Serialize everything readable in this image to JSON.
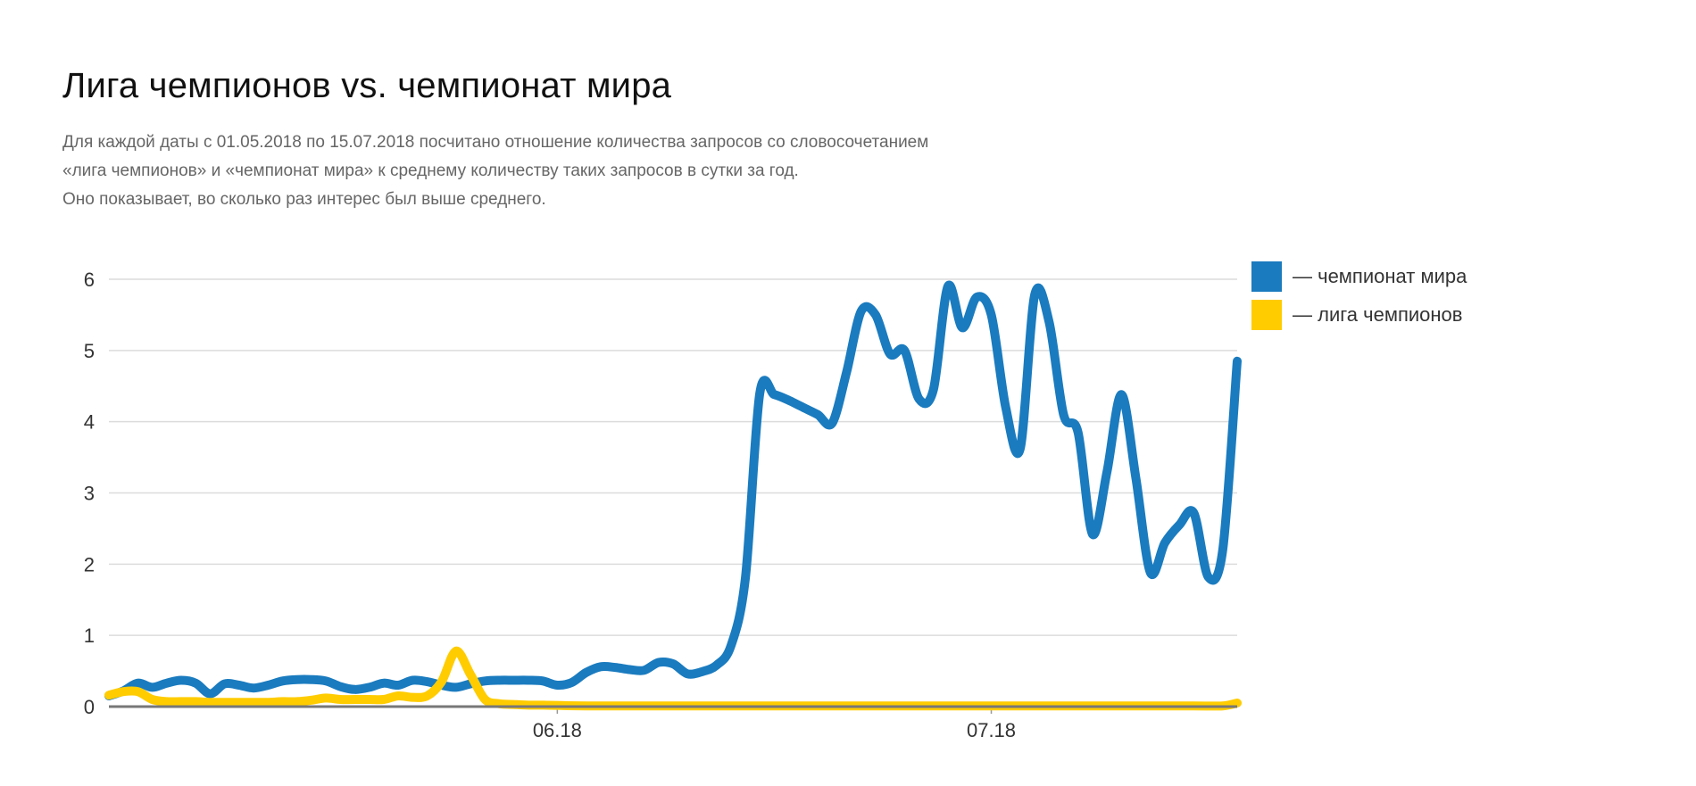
{
  "title": "Лига чемпионов vs. чемпионат мира",
  "subtitle": [
    "Для каждой даты с 01.05.2018 по 15.07.2018 посчитано отношение количества запросов со словосочетанием",
    "«лига чемпионов» и «чемпионат мира» к среднему количеству таких запросов в сутки за год.",
    "Оно показывает, во сколько раз интерес был выше среднего."
  ],
  "legend": [
    {
      "label": "— чемпионат мира",
      "color": "#1a7bbf"
    },
    {
      "label": "— лига чемпионов",
      "color": "#ffcc00"
    }
  ],
  "chart_data": {
    "type": "line",
    "title": "Лига чемпионов vs. чемпионат мира",
    "xlabel": "",
    "ylabel": "",
    "xlim": [
      "2018-05-01",
      "2018-07-15"
    ],
    "ylim": [
      0,
      6
    ],
    "yticks": [
      0,
      1,
      2,
      3,
      4,
      5,
      6
    ],
    "xticks": [
      {
        "date": "2018-06-01",
        "label": "06.18"
      },
      {
        "date": "2018-07-01",
        "label": "07.18"
      }
    ],
    "grid": true,
    "legend_position": "top-right",
    "series": [
      {
        "name": "чемпионат мира",
        "color": "#1a7bbf",
        "points": [
          [
            "2018-05-01",
            0.15
          ],
          [
            "2018-05-02",
            0.22
          ],
          [
            "2018-05-03",
            0.33
          ],
          [
            "2018-05-04",
            0.27
          ],
          [
            "2018-05-05",
            0.33
          ],
          [
            "2018-05-06",
            0.37
          ],
          [
            "2018-05-07",
            0.33
          ],
          [
            "2018-05-08",
            0.18
          ],
          [
            "2018-05-09",
            0.32
          ],
          [
            "2018-05-10",
            0.3
          ],
          [
            "2018-05-11",
            0.26
          ],
          [
            "2018-05-12",
            0.3
          ],
          [
            "2018-05-13",
            0.36
          ],
          [
            "2018-05-14",
            0.38
          ],
          [
            "2018-05-15",
            0.38
          ],
          [
            "2018-05-16",
            0.36
          ],
          [
            "2018-05-17",
            0.28
          ],
          [
            "2018-05-18",
            0.24
          ],
          [
            "2018-05-19",
            0.27
          ],
          [
            "2018-05-20",
            0.33
          ],
          [
            "2018-05-21",
            0.3
          ],
          [
            "2018-05-22",
            0.37
          ],
          [
            "2018-05-23",
            0.35
          ],
          [
            "2018-05-24",
            0.3
          ],
          [
            "2018-05-25",
            0.27
          ],
          [
            "2018-05-26",
            0.32
          ],
          [
            "2018-05-27",
            0.36
          ],
          [
            "2018-05-28",
            0.37
          ],
          [
            "2018-05-29",
            0.37
          ],
          [
            "2018-05-30",
            0.37
          ],
          [
            "2018-05-31",
            0.36
          ],
          [
            "2018-06-01",
            0.3
          ],
          [
            "2018-06-02",
            0.34
          ],
          [
            "2018-06-03",
            0.48
          ],
          [
            "2018-06-04",
            0.56
          ],
          [
            "2018-06-05",
            0.55
          ],
          [
            "2018-06-06",
            0.52
          ],
          [
            "2018-06-07",
            0.51
          ],
          [
            "2018-06-08",
            0.62
          ],
          [
            "2018-06-09",
            0.6
          ],
          [
            "2018-06-10",
            0.46
          ],
          [
            "2018-06-11",
            0.49
          ],
          [
            "2018-06-12",
            0.58
          ],
          [
            "2018-06-13",
            0.85
          ],
          [
            "2018-06-14",
            1.8
          ],
          [
            "2018-06-15",
            4.4
          ],
          [
            "2018-06-16",
            4.38
          ],
          [
            "2018-06-17",
            4.3
          ],
          [
            "2018-06-18",
            4.2
          ],
          [
            "2018-06-19",
            4.1
          ],
          [
            "2018-06-20",
            3.98
          ],
          [
            "2018-06-21",
            4.7
          ],
          [
            "2018-06-22",
            5.55
          ],
          [
            "2018-06-23",
            5.5
          ],
          [
            "2018-06-24",
            4.95
          ],
          [
            "2018-06-25",
            5.0
          ],
          [
            "2018-06-26",
            4.32
          ],
          [
            "2018-06-27",
            4.45
          ],
          [
            "2018-06-28",
            5.9
          ],
          [
            "2018-06-29",
            5.32
          ],
          [
            "2018-06-30",
            5.75
          ],
          [
            "2018-07-01",
            5.5
          ],
          [
            "2018-07-02",
            4.2
          ],
          [
            "2018-07-03",
            3.62
          ],
          [
            "2018-07-04",
            5.78
          ],
          [
            "2018-07-05",
            5.4
          ],
          [
            "2018-07-06",
            4.1
          ],
          [
            "2018-07-07",
            3.85
          ],
          [
            "2018-07-08",
            2.42
          ],
          [
            "2018-07-09",
            3.3
          ],
          [
            "2018-07-10",
            4.38
          ],
          [
            "2018-07-11",
            3.2
          ],
          [
            "2018-07-12",
            1.88
          ],
          [
            "2018-07-13",
            2.3
          ],
          [
            "2018-07-14",
            2.55
          ],
          [
            "2018-07-15",
            2.72
          ],
          [
            "2018-07-16",
            1.82
          ],
          [
            "2018-07-17",
            2.2
          ],
          [
            "2018-07-18",
            4.85
          ]
        ]
      },
      {
        "name": "лига чемпионов",
        "color": "#ffcc00",
        "points": [
          [
            "2018-05-01",
            0.16
          ],
          [
            "2018-05-02",
            0.21
          ],
          [
            "2018-05-03",
            0.21
          ],
          [
            "2018-05-04",
            0.1
          ],
          [
            "2018-05-05",
            0.07
          ],
          [
            "2018-05-06",
            0.07
          ],
          [
            "2018-05-07",
            0.07
          ],
          [
            "2018-05-08",
            0.06
          ],
          [
            "2018-05-09",
            0.06
          ],
          [
            "2018-05-10",
            0.06
          ],
          [
            "2018-05-11",
            0.06
          ],
          [
            "2018-05-12",
            0.06
          ],
          [
            "2018-05-13",
            0.07
          ],
          [
            "2018-05-14",
            0.07
          ],
          [
            "2018-05-15",
            0.09
          ],
          [
            "2018-05-16",
            0.12
          ],
          [
            "2018-05-17",
            0.1
          ],
          [
            "2018-05-18",
            0.1
          ],
          [
            "2018-05-19",
            0.1
          ],
          [
            "2018-05-20",
            0.1
          ],
          [
            "2018-05-21",
            0.15
          ],
          [
            "2018-05-22",
            0.13
          ],
          [
            "2018-05-23",
            0.15
          ],
          [
            "2018-05-24",
            0.35
          ],
          [
            "2018-05-25",
            0.78
          ],
          [
            "2018-05-26",
            0.45
          ],
          [
            "2018-05-27",
            0.1
          ],
          [
            "2018-05-28",
            0.04
          ],
          [
            "2018-05-29",
            0.03
          ],
          [
            "2018-05-30",
            0.02
          ],
          [
            "2018-05-31",
            0.02
          ],
          [
            "2018-06-03",
            0.01
          ],
          [
            "2018-06-10",
            0.01
          ],
          [
            "2018-06-15",
            0.01
          ],
          [
            "2018-06-20",
            0.01
          ],
          [
            "2018-06-25",
            0.01
          ],
          [
            "2018-06-30",
            0.01
          ],
          [
            "2018-07-05",
            0.01
          ],
          [
            "2018-07-10",
            0.01
          ],
          [
            "2018-07-15",
            0.01
          ],
          [
            "2018-07-17",
            0.01
          ],
          [
            "2018-07-18",
            0.05
          ]
        ]
      }
    ]
  }
}
